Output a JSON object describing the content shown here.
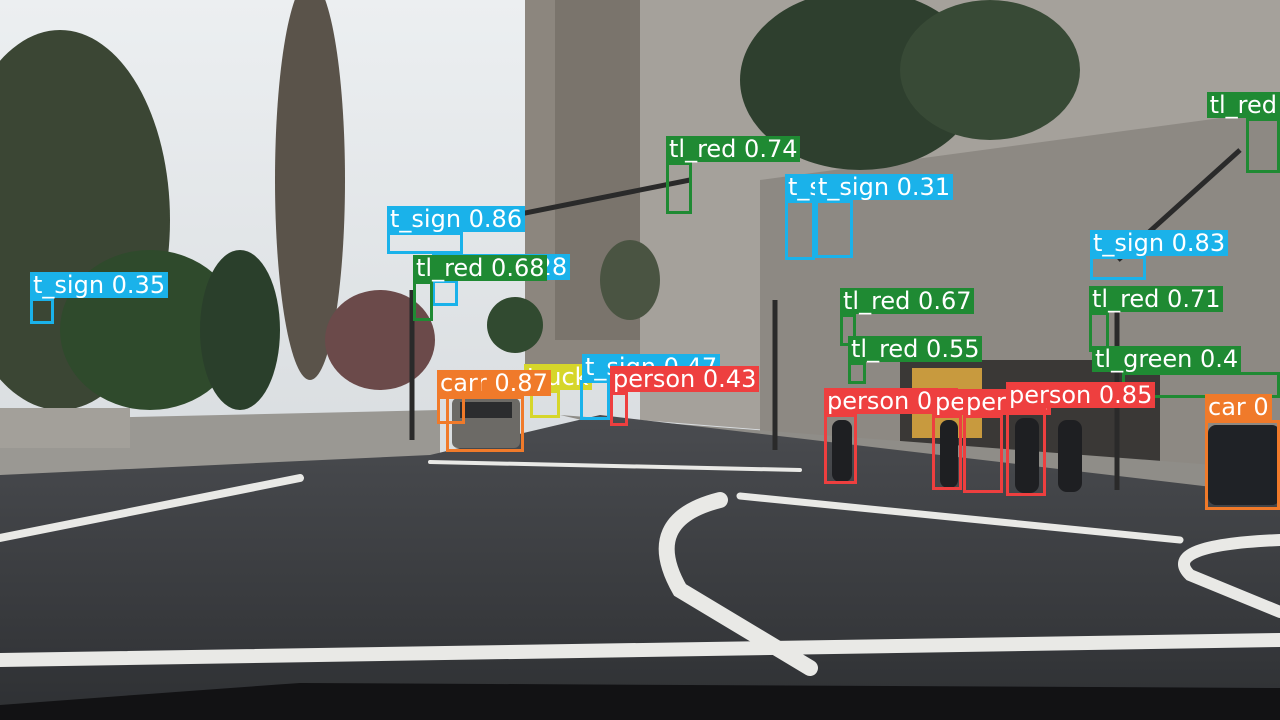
{
  "colors": {
    "t_sign": "#1ab2ea",
    "tl_red": "#1f8a33",
    "tl_green": "#1f8a33",
    "car": "#f07a2a",
    "person": "#ee3f3f",
    "truck": "#d6d62a"
  },
  "detections": [
    {
      "label": "t_sign 0.35",
      "cls": "t_sign"
    },
    {
      "label": "t_sign 0.86",
      "cls": "t_sign"
    },
    {
      "label": "t_sign 0.28",
      "cls": "t_sign"
    },
    {
      "label": "tl_red 0.68",
      "cls": "tl_red"
    },
    {
      "label": "tl_red 0.74",
      "cls": "tl_red"
    },
    {
      "label": "t_sign 0.31",
      "cls": "t_sign"
    },
    {
      "label": "t_sign 0.31",
      "cls": "t_sign"
    },
    {
      "label": "t_sign 0.83",
      "cls": "t_sign"
    },
    {
      "label": "tl_red 0.67",
      "cls": "tl_red"
    },
    {
      "label": "tl_red 0.55",
      "cls": "tl_red"
    },
    {
      "label": "tl_red 0.71",
      "cls": "tl_red"
    },
    {
      "label": "tl_red",
      "cls": "tl_red"
    },
    {
      "label": "tl_green 0.4",
      "cls": "tl_green"
    },
    {
      "label": "truck",
      "cls": "truck"
    },
    {
      "label": "t_sign 0.47",
      "cls": "t_sign"
    },
    {
      "label": "car 0.87",
      "cls": "car"
    },
    {
      "label": "car",
      "cls": "car"
    },
    {
      "label": "person 0.43",
      "cls": "person"
    },
    {
      "label": "person 0.6",
      "cls": "person"
    },
    {
      "label": "person",
      "cls": "person"
    },
    {
      "label": "person",
      "cls": "person"
    },
    {
      "label": "person 0.85",
      "cls": "person"
    },
    {
      "label": "car 0",
      "cls": "car"
    }
  ]
}
